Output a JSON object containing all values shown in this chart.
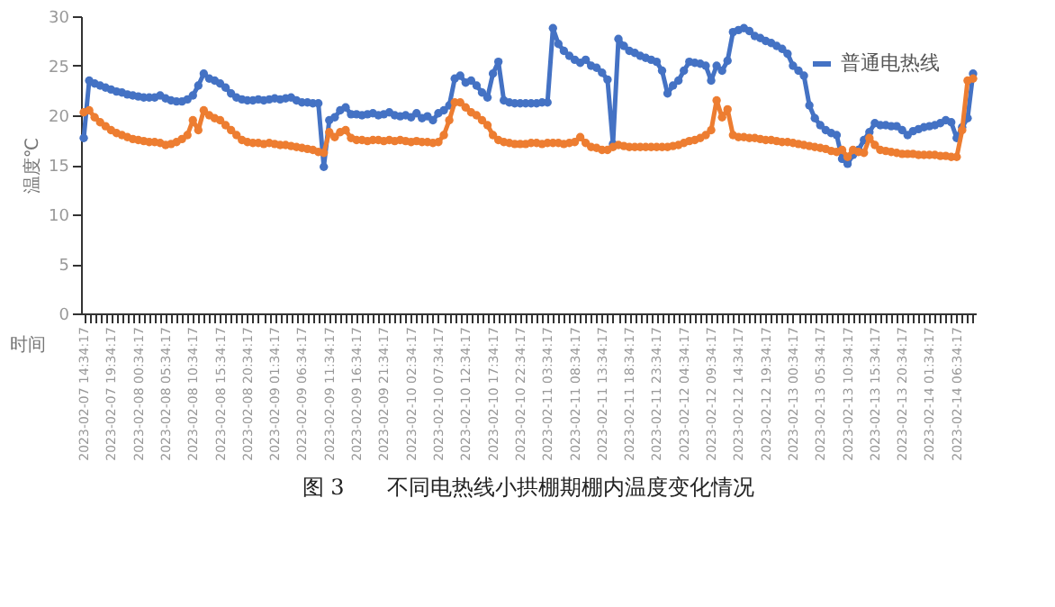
{
  "chart_data": {
    "type": "line",
    "title": "图 3　　不同电热线小拱棚期棚内温度变化情况",
    "xlabel": "时间",
    "ylabel": "温度℃",
    "categories": [
      "2023-02-07 14:34:17",
      null,
      null,
      null,
      null,
      "2023-02-07 19:34:17",
      null,
      null,
      null,
      null,
      "2023-02-08 00:34:17",
      null,
      null,
      null,
      null,
      "2023-02-08 05:34:17",
      null,
      null,
      null,
      null,
      "2023-02-08 10:34:17",
      null,
      null,
      null,
      null,
      "2023-02-08 15:34:17",
      null,
      null,
      null,
      null,
      "2023-02-08 20:34:17",
      null,
      null,
      null,
      null,
      "2023-02-09 01:34:17",
      null,
      null,
      null,
      null,
      "2023-02-09 06:34:17",
      null,
      null,
      null,
      null,
      "2023-02-09 11:34:17",
      null,
      null,
      null,
      null,
      "2023-02-09 16:34:17",
      null,
      null,
      null,
      null,
      "2023-02-09 21:34:17",
      null,
      null,
      null,
      null,
      "2023-02-10 02:34:17",
      null,
      null,
      null,
      null,
      "2023-02-10 07:34:17",
      null,
      null,
      null,
      null,
      "2023-02-10 12:34:17",
      null,
      null,
      null,
      null,
      "2023-02-10 17:34:17",
      null,
      null,
      null,
      null,
      "2023-02-10 22:34:17",
      null,
      null,
      null,
      null,
      "2023-02-11 03:34:17",
      null,
      null,
      null,
      null,
      "2023-02-11 08:34:17",
      null,
      null,
      null,
      null,
      "2023-02-11 13:34:17",
      null,
      null,
      null,
      null,
      "2023-02-11 18:34:17",
      null,
      null,
      null,
      null,
      "2023-02-11 23:34:17",
      null,
      null,
      null,
      null,
      "2023-02-12 04:34:17",
      null,
      null,
      null,
      null,
      "2023-02-12 09:34:17",
      null,
      null,
      null,
      null,
      "2023-02-12 14:34:17",
      null,
      null,
      null,
      null,
      "2023-02-12 19:34:17",
      null,
      null,
      null,
      null,
      "2023-02-13 00:34:17",
      null,
      null,
      null,
      null,
      "2023-02-13 05:34:17",
      null,
      null,
      null,
      null,
      "2023-02-13 10:34:17",
      null,
      null,
      null,
      null,
      "2023-02-13 15:34:17",
      null,
      null,
      null,
      null,
      "2023-02-13 20:34:17",
      null,
      null,
      null,
      null,
      "2023-02-14 01:34:17",
      null,
      null,
      null,
      null,
      "2023-02-14 06:34:17",
      null,
      null,
      null
    ],
    "series": [
      {
        "name": "普通电热线",
        "color": "#4472c4",
        "values": [
          17.7,
          23.5,
          23.2,
          23.0,
          22.8,
          22.6,
          22.4,
          22.3,
          22.1,
          22.0,
          21.9,
          21.8,
          21.8,
          21.8,
          22.0,
          21.7,
          21.5,
          21.4,
          21.4,
          21.6,
          22.0,
          23.0,
          24.2,
          23.7,
          23.5,
          23.2,
          22.8,
          22.2,
          21.8,
          21.6,
          21.5,
          21.5,
          21.6,
          21.5,
          21.6,
          21.7,
          21.6,
          21.7,
          21.8,
          21.5,
          21.3,
          21.3,
          21.2,
          21.2,
          14.8,
          19.5,
          19.8,
          20.5,
          20.8,
          20.1,
          20.1,
          20.0,
          20.1,
          20.2,
          20.0,
          20.1,
          20.3,
          20.0,
          19.9,
          20.0,
          19.8,
          20.2,
          19.7,
          19.9,
          19.5,
          20.2,
          20.5,
          21.0,
          23.7,
          24.0,
          23.3,
          23.5,
          23.0,
          22.3,
          21.8,
          24.2,
          25.4,
          21.5,
          21.3,
          21.2,
          21.2,
          21.2,
          21.2,
          21.2,
          21.3,
          21.3,
          28.8,
          27.2,
          26.5,
          26.0,
          25.6,
          25.3,
          25.6,
          25.0,
          24.8,
          24.3,
          23.6,
          17.1,
          27.7,
          27.0,
          26.5,
          26.3,
          26.0,
          25.8,
          25.6,
          25.4,
          24.5,
          22.2,
          23.0,
          23.5,
          24.5,
          25.4,
          25.3,
          25.2,
          25.0,
          23.5,
          25.0,
          24.5,
          25.5,
          28.4,
          28.6,
          28.8,
          28.5,
          28.0,
          27.8,
          27.5,
          27.3,
          27.0,
          26.7,
          26.2,
          25.0,
          24.5,
          24.0,
          21.0,
          19.7,
          19.0,
          18.5,
          18.2,
          18.0,
          15.6,
          15.1,
          16.0,
          16.5,
          17.5,
          18.3,
          19.2,
          19.0,
          19.0,
          18.9,
          18.9,
          18.5,
          18.0,
          18.4,
          18.6,
          18.8,
          18.9,
          19.0,
          19.2,
          19.5,
          19.3,
          17.7,
          18.8,
          19.7,
          24.2
        ]
      },
      {
        "color": "#ed7d31",
        "values": [
          20.3,
          20.5,
          19.8,
          19.3,
          18.9,
          18.5,
          18.2,
          18.0,
          17.8,
          17.6,
          17.5,
          17.4,
          17.3,
          17.3,
          17.2,
          17.0,
          17.1,
          17.3,
          17.6,
          18.0,
          19.5,
          18.5,
          20.5,
          20.0,
          19.7,
          19.5,
          19.0,
          18.5,
          18.0,
          17.5,
          17.3,
          17.2,
          17.2,
          17.1,
          17.2,
          17.1,
          17.0,
          17.0,
          16.9,
          16.8,
          16.7,
          16.6,
          16.5,
          16.3,
          16.2,
          18.3,
          17.8,
          18.3,
          18.5,
          17.7,
          17.5,
          17.5,
          17.4,
          17.5,
          17.5,
          17.4,
          17.5,
          17.4,
          17.5,
          17.4,
          17.3,
          17.4,
          17.3,
          17.3,
          17.2,
          17.3,
          18.0,
          19.5,
          21.3,
          21.3,
          20.8,
          20.3,
          20.0,
          19.5,
          19.0,
          18.0,
          17.5,
          17.3,
          17.2,
          17.1,
          17.1,
          17.1,
          17.2,
          17.2,
          17.1,
          17.2,
          17.2,
          17.2,
          17.1,
          17.2,
          17.3,
          17.8,
          17.2,
          16.8,
          16.7,
          16.5,
          16.5,
          16.8,
          17.0,
          16.9,
          16.8,
          16.8,
          16.8,
          16.8,
          16.8,
          16.8,
          16.8,
          16.8,
          16.9,
          17.0,
          17.2,
          17.4,
          17.5,
          17.7,
          18.0,
          18.5,
          21.5,
          19.8,
          20.6,
          18.0,
          17.8,
          17.8,
          17.7,
          17.7,
          17.6,
          17.5,
          17.5,
          17.4,
          17.3,
          17.3,
          17.2,
          17.1,
          17.0,
          16.9,
          16.8,
          16.7,
          16.6,
          16.4,
          16.3,
          16.5,
          15.8,
          16.5,
          16.3,
          16.2,
          17.7,
          17.0,
          16.5,
          16.4,
          16.3,
          16.2,
          16.1,
          16.1,
          16.1,
          16.0,
          16.0,
          16.0,
          16.0,
          15.9,
          15.9,
          15.8,
          15.8,
          18.5,
          23.5,
          23.7
        ]
      }
    ],
    "ylim": [
      0,
      30
    ],
    "yticks": [
      0,
      5,
      10,
      15,
      20,
      25,
      30
    ],
    "grid": false,
    "legend": "top right",
    "marker": "circle"
  }
}
